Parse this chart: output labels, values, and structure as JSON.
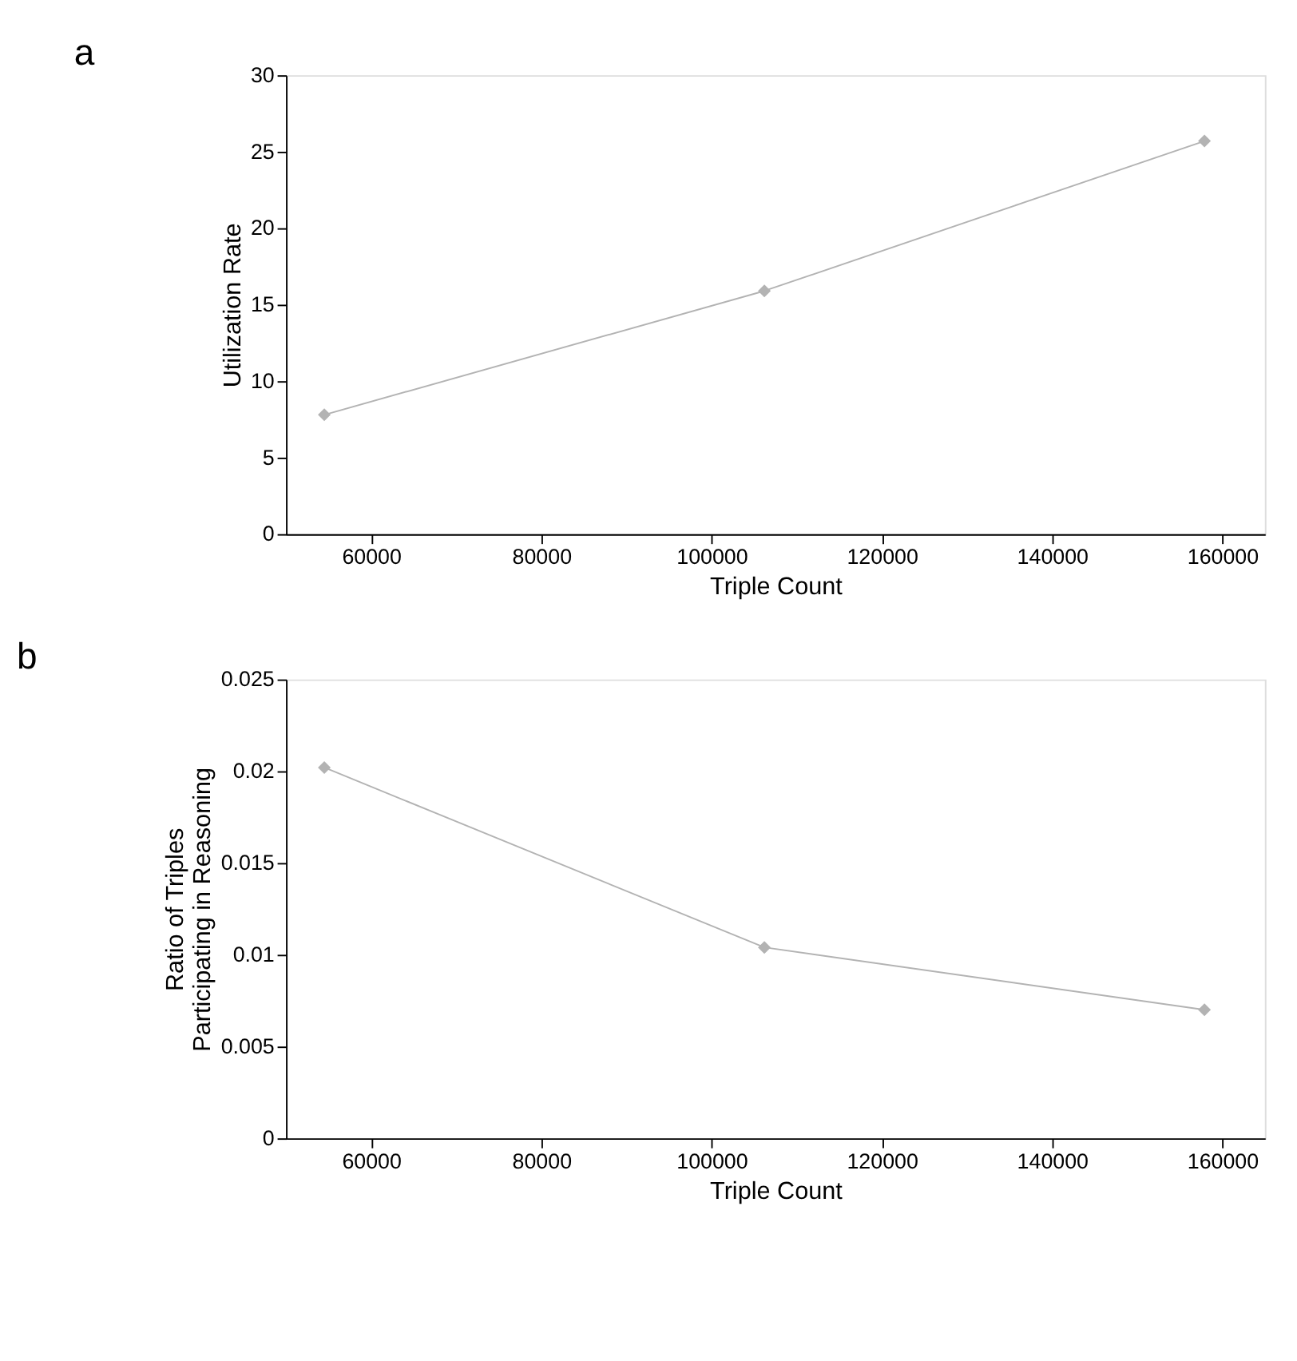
{
  "chart_data": [
    {
      "type": "line",
      "title": "a",
      "xlabel": "Triple Count",
      "ylabel": "Utilization Rate",
      "x": [
        54500,
        106200,
        157900
      ],
      "series": [
        {
          "color": "#b3b3b3",
          "values": [
            7.8,
            15.9,
            25.7
          ]
        }
      ],
      "xlim": [
        50000,
        165000
      ],
      "xticks": [
        60000,
        80000,
        100000,
        120000,
        140000,
        160000
      ],
      "ylim": [
        0,
        30
      ],
      "yticks": [
        0,
        5,
        10,
        15,
        20,
        25,
        30
      ],
      "marker": "diamond",
      "line_style": "solid",
      "grid": false,
      "legend": false
    },
    {
      "type": "line",
      "title": "b",
      "xlabel": "Triple Count",
      "ylabel": "Ratio of Triples\nParticipating in Reasoning",
      "x": [
        54500,
        106200,
        157900
      ],
      "series": [
        {
          "color": "#b3b3b3",
          "values": [
            0.0202,
            0.0104,
            0.007
          ]
        }
      ],
      "xlim": [
        50000,
        165000
      ],
      "xticks": [
        60000,
        80000,
        100000,
        120000,
        140000,
        160000
      ],
      "ylim": [
        0,
        0.025
      ],
      "yticks": [
        0,
        0.005,
        0.01,
        0.015,
        0.02,
        0.025
      ],
      "marker": "diamond",
      "line_style": "solid",
      "grid": false,
      "legend": false
    }
  ]
}
